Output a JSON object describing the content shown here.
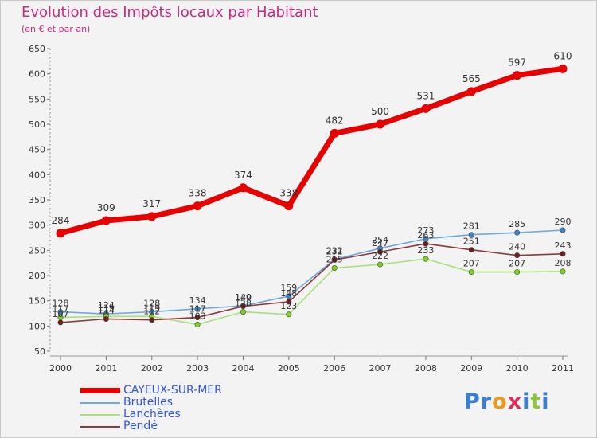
{
  "header": {
    "title": "Evolution des Impôts locaux par Habitant",
    "subtitle": "(en € et par an)"
  },
  "logo": {
    "text": "Proxiti",
    "letters": [
      {
        "ch": "P",
        "color": "#3a7fd0"
      },
      {
        "ch": "r",
        "color": "#3a7fd0"
      },
      {
        "ch": "o",
        "color": "#e89a1c"
      },
      {
        "ch": "x",
        "color": "#d8305a"
      },
      {
        "ch": "i",
        "color": "#3a7fd0"
      },
      {
        "ch": "t",
        "color": "#8cc63f"
      },
      {
        "ch": "i",
        "color": "#3a7fd0"
      }
    ]
  },
  "chart_data": {
    "type": "line",
    "title": "Evolution des Impôts locaux par Habitant",
    "subtitle": "(en € et par an)",
    "xlabel": "",
    "ylabel": "",
    "x": [
      "2000",
      "2001",
      "2002",
      "2003",
      "2004",
      "2005",
      "2006",
      "2007",
      "2008",
      "2009",
      "2010",
      "2011"
    ],
    "ylim": [
      50,
      650
    ],
    "yticks": [
      50,
      100,
      150,
      200,
      250,
      300,
      350,
      400,
      450,
      500,
      550,
      600,
      650
    ],
    "grid": false,
    "legend_position": "bottom-left",
    "series": [
      {
        "name": "CAYEUX-SUR-MER",
        "color": "#e60000",
        "values": [
          284,
          309,
          317,
          338,
          374,
          338,
          482,
          500,
          531,
          565,
          597,
          610
        ],
        "labels_shown": true
      },
      {
        "name": "Brutelles",
        "color": "#6fa8dc",
        "marker_color": "#3d85c6",
        "values": [
          128,
          124,
          128,
          134,
          140,
          159,
          232,
          254,
          273,
          281,
          285,
          290
        ],
        "labels_shown": true
      },
      {
        "name": "Lanchères",
        "color": "#a8e07a",
        "marker_color": "#7ed321",
        "values": [
          117,
          119,
          119,
          103,
          128,
          123,
          215,
          222,
          233,
          207,
          207,
          208
        ],
        "labels_shown": true
      },
      {
        "name": "Pendé",
        "color": "#8b3a3a",
        "marker_color": "#6b1f1f",
        "values": [
          107,
          114,
          112,
          117,
          139,
          148,
          231,
          247,
          263,
          251,
          240,
          243
        ],
        "labels_shown": true
      }
    ]
  }
}
